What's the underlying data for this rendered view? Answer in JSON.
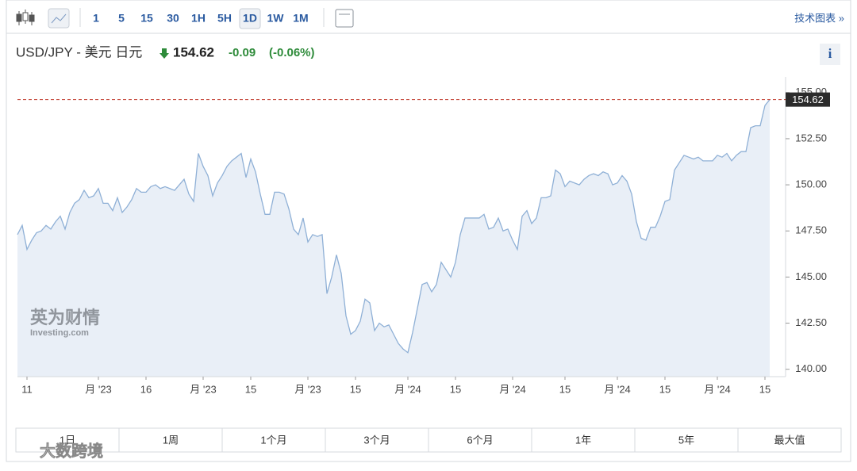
{
  "toolbar": {
    "intervals": [
      "1",
      "5",
      "15",
      "30",
      "1H",
      "5H",
      "1D",
      "1W",
      "1M"
    ],
    "active": "1D",
    "link": "技术图表 »"
  },
  "header": {
    "symbol": "USD/JPY - 美元 日元",
    "price": "154.62",
    "change": "-0.09",
    "change_pct": "(-0.06%)",
    "info": "i"
  },
  "watermark": {
    "brand": "英为财情",
    "site": "Investing.com",
    "corner": "大数跨境"
  },
  "ranges": [
    "1日",
    "1周",
    "1个月",
    "3个月",
    "6个月",
    "1年",
    "5年",
    "最大值"
  ],
  "chart_data": {
    "type": "area",
    "color": "#8fb0d6",
    "fill": "#e9eff7",
    "categories": [
      null,
      null,
      "11",
      null,
      null,
      null,
      null,
      null,
      null,
      null,
      null,
      null,
      null,
      null,
      null,
      null,
      null,
      "月 '23",
      null,
      null,
      null,
      null,
      null,
      null,
      null,
      null,
      null,
      "16",
      null,
      null,
      null,
      null,
      null,
      null,
      null,
      null,
      null,
      null,
      null,
      "月 '23",
      null,
      null,
      null,
      null,
      null,
      null,
      null,
      null,
      null,
      "15",
      null,
      null,
      null,
      null,
      null,
      null,
      null,
      null,
      null,
      null,
      null,
      "月 '23",
      null,
      null,
      null,
      null,
      null,
      null,
      null,
      null,
      null,
      "15",
      null,
      null,
      null,
      null,
      null,
      null,
      null,
      null,
      null,
      null,
      "月 '24",
      null,
      null,
      null,
      null,
      null,
      null,
      null,
      null,
      null,
      "15",
      null,
      null,
      null,
      null,
      null,
      null,
      null,
      null,
      null,
      null,
      null,
      "月 '24",
      null,
      null,
      null,
      null,
      null,
      null,
      null,
      null,
      null,
      null,
      "15",
      null,
      null,
      null,
      null,
      null,
      null,
      null,
      null,
      null,
      null,
      "月 '24",
      null,
      null,
      null,
      null,
      null,
      null,
      null,
      null,
      null,
      "15",
      null,
      null,
      null,
      null,
      null,
      null,
      null,
      null,
      null,
      null,
      "月 '24",
      null,
      null,
      null,
      null,
      null,
      null,
      null,
      null,
      null,
      "15",
      null
    ],
    "values": [
      147.3,
      147.8,
      146.5,
      147.0,
      147.4,
      147.5,
      147.8,
      147.6,
      148.0,
      148.3,
      147.6,
      148.5,
      149.0,
      149.2,
      149.7,
      149.3,
      149.4,
      149.8,
      149.0,
      149.0,
      148.6,
      149.3,
      148.5,
      148.8,
      149.2,
      149.8,
      149.6,
      149.6,
      149.9,
      150.0,
      149.8,
      149.9,
      149.8,
      149.7,
      150.0,
      150.3,
      149.5,
      149.1,
      151.7,
      151.0,
      150.5,
      149.4,
      150.1,
      150.5,
      151.0,
      151.3,
      151.5,
      151.7,
      150.4,
      151.4,
      150.7,
      149.5,
      148.4,
      148.4,
      149.6,
      149.6,
      149.5,
      148.7,
      147.6,
      147.3,
      148.2,
      146.9,
      147.3,
      147.2,
      147.3,
      144.1,
      145.0,
      146.2,
      145.2,
      142.9,
      141.9,
      142.1,
      142.6,
      143.8,
      143.6,
      142.1,
      142.5,
      142.3,
      142.4,
      141.9,
      141.4,
      141.1,
      140.9,
      142.0,
      143.3,
      144.6,
      144.7,
      144.2,
      144.6,
      145.8,
      145.4,
      145.0,
      145.8,
      147.3,
      148.2,
      148.2,
      148.2,
      148.2,
      148.4,
      147.6,
      147.7,
      148.2,
      147.5,
      147.6,
      147.0,
      146.5,
      148.3,
      148.6,
      147.9,
      148.2,
      149.3,
      149.3,
      149.4,
      150.8,
      150.6,
      149.9,
      150.2,
      150.1,
      150.0,
      150.3,
      150.5,
      150.6,
      150.5,
      150.7,
      150.6,
      150.0,
      150.1,
      150.5,
      150.2,
      149.5,
      148.0,
      147.1,
      147.0,
      147.7,
      147.7,
      148.3,
      149.1,
      149.2,
      150.8,
      151.2,
      151.6,
      151.5,
      151.4,
      151.5,
      151.3,
      151.3,
      151.3,
      151.6,
      151.5,
      151.7,
      151.3,
      151.6,
      151.8,
      151.8,
      153.1,
      153.2,
      153.2,
      154.3,
      154.62
    ],
    "ylim": [
      139.6,
      155.85
    ],
    "yticks": [
      {
        "value": 140,
        "label": "140.00"
      },
      {
        "value": 142.5,
        "label": "142.50"
      },
      {
        "value": 145,
        "label": "145.00"
      },
      {
        "value": 147.5,
        "label": "147.50"
      },
      {
        "value": 150,
        "label": "150.00"
      },
      {
        "value": 152.5,
        "label": "152.50"
      },
      {
        "value": 155,
        "label": "155.00"
      }
    ],
    "last_price": 154.62,
    "last_price_color": "#c0392b"
  }
}
